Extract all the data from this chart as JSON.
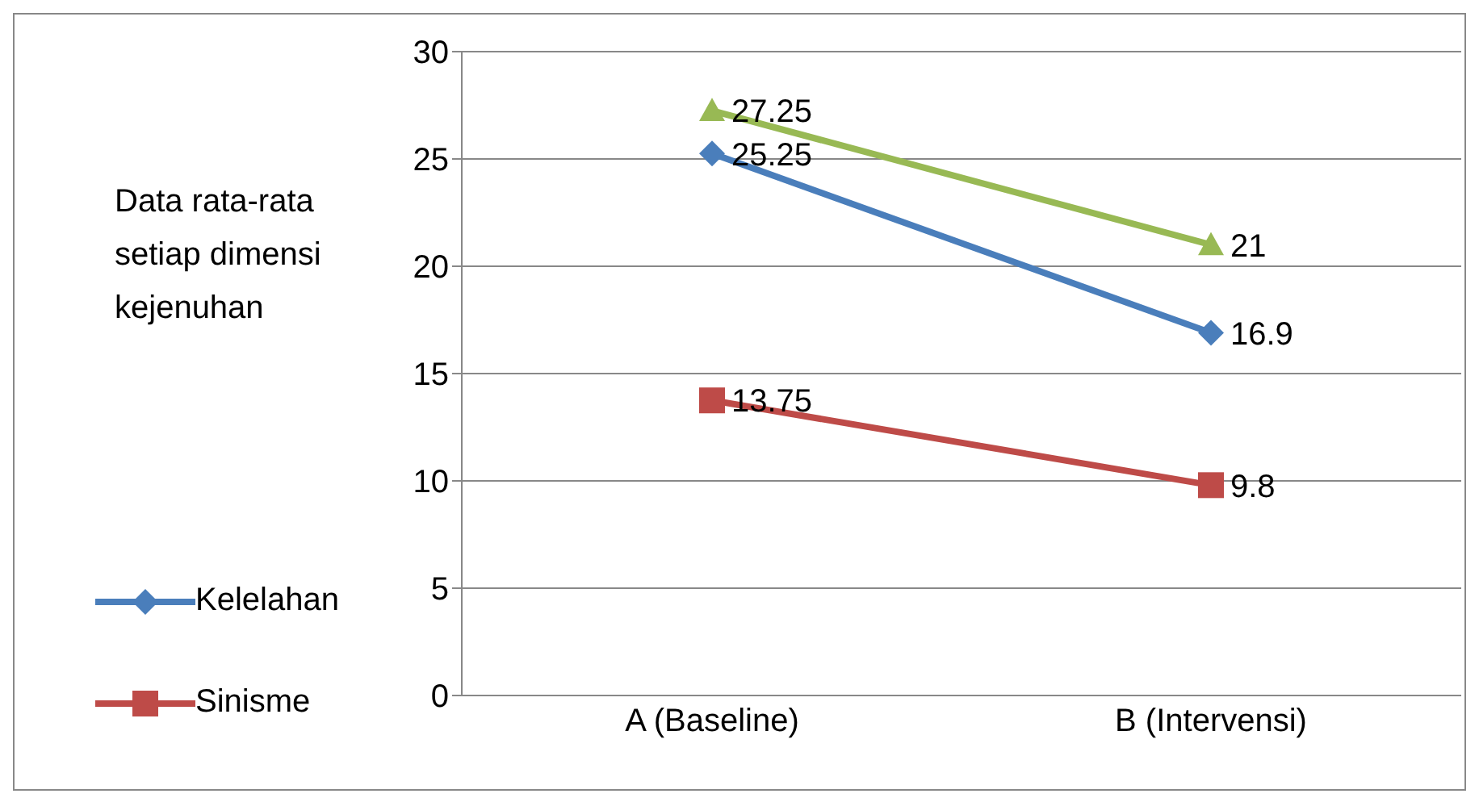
{
  "chart_data": {
    "type": "line",
    "ylabel": "Data rata-rata setiap dimensi kejenuhan",
    "categories": [
      "A (Baseline)",
      "B (Intervensi)"
    ],
    "series": [
      {
        "name": "Kelelahan",
        "color": "#4a7ebb",
        "marker": "diamond",
        "values": [
          25.25,
          16.9
        ]
      },
      {
        "name": "Sinisme",
        "color": "#be4b48",
        "marker": "square",
        "values": [
          13.75,
          9.8
        ]
      },
      {
        "color": "#98b954",
        "marker": "triangle",
        "values": [
          27.25,
          21
        ]
      }
    ],
    "ylim": [
      0,
      30
    ],
    "yticks": [
      0,
      5,
      10,
      15,
      20,
      25,
      30
    ],
    "grid": "y",
    "legend": "left",
    "data_labels": true,
    "line_style": "solid"
  }
}
